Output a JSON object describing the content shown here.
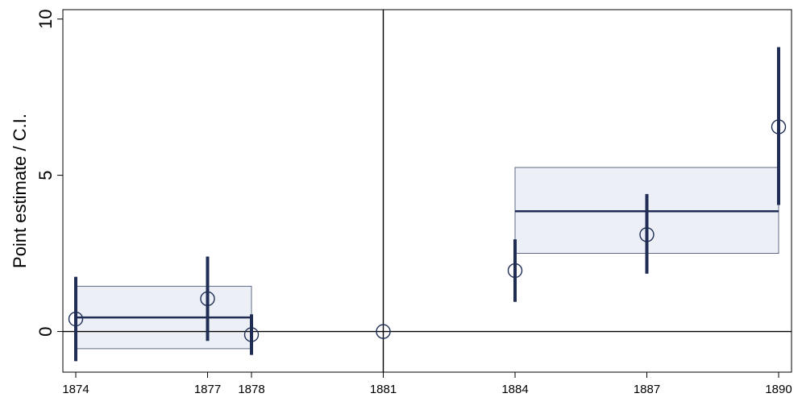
{
  "chart_data": {
    "type": "scatter",
    "title": "",
    "xlabel": "",
    "ylabel": "Point estimate / C.I.",
    "xlim": [
      1874,
      1890
    ],
    "ylim": [
      -1.3,
      10.3
    ],
    "x_ticks": [
      1874,
      1877,
      1878,
      1881,
      1884,
      1887,
      1890
    ],
    "y_ticks": [
      0,
      5,
      10
    ],
    "grid": false,
    "legend": "none",
    "reference_lines": {
      "horizontal_y": 0,
      "vertical_x": 1881
    },
    "points": [
      {
        "x": 1874,
        "y": 0.4,
        "ci_low": -0.95,
        "ci_high": 1.75
      },
      {
        "x": 1877,
        "y": 1.05,
        "ci_low": -0.3,
        "ci_high": 2.4
      },
      {
        "x": 1878,
        "y": -0.1,
        "ci_low": -0.75,
        "ci_high": 0.55
      },
      {
        "x": 1881,
        "y": 0.0,
        "ci_low": 0.0,
        "ci_high": 0.0
      },
      {
        "x": 1884,
        "y": 1.95,
        "ci_low": 0.95,
        "ci_high": 2.95
      },
      {
        "x": 1887,
        "y": 3.1,
        "ci_low": 1.85,
        "ci_high": 4.4
      },
      {
        "x": 1890,
        "y": 6.55,
        "ci_low": 4.05,
        "ci_high": 9.1
      }
    ],
    "period_averages": [
      {
        "x_start": 1874,
        "x_end": 1878,
        "estimate": 0.45,
        "ci_low": -0.55,
        "ci_high": 1.45
      },
      {
        "x_start": 1884,
        "x_end": 1890,
        "estimate": 3.85,
        "ci_low": 2.5,
        "ci_high": 5.25
      }
    ],
    "colors": {
      "ci_bar": "#1f2d55",
      "average_line": "#1f2d55",
      "box_fill": "#eceff5",
      "box_stroke": "#3a4a6a",
      "marker": "#1f2d55",
      "reference_line": "#000000"
    }
  }
}
